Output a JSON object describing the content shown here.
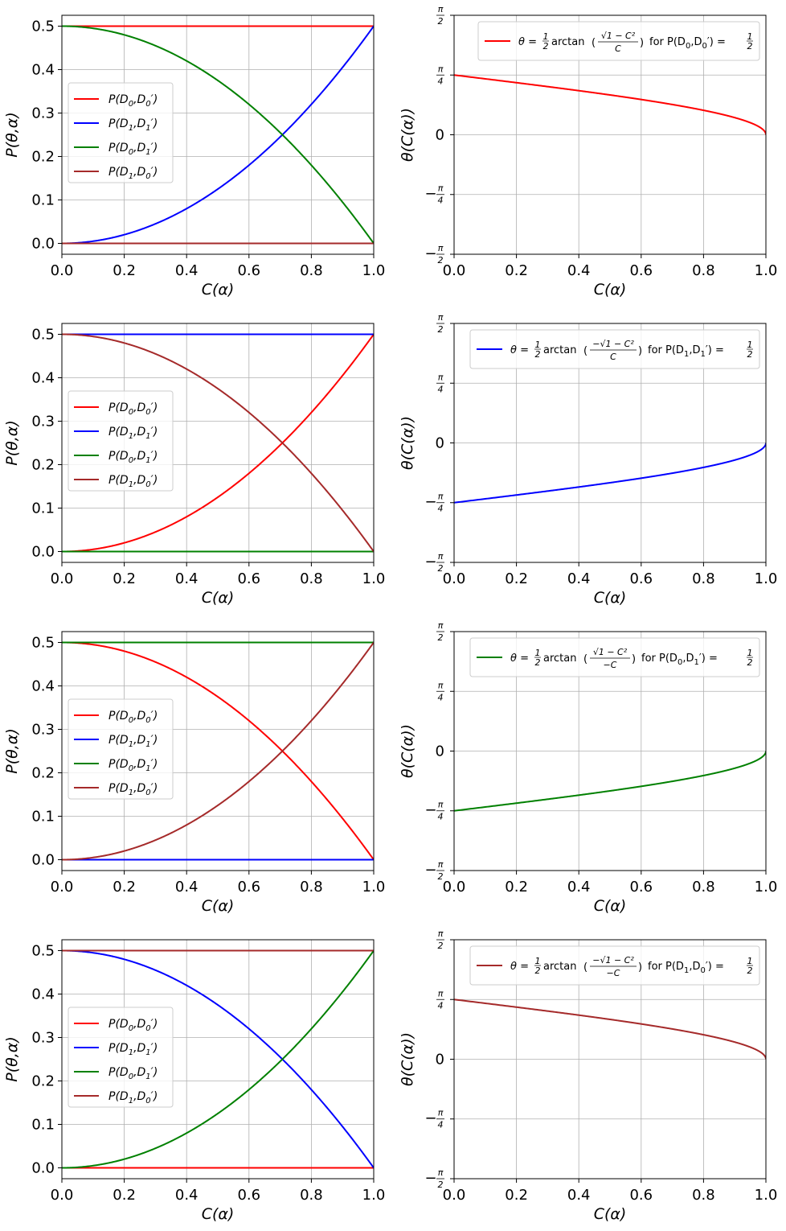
{
  "chart_data": [
    {
      "type": "line",
      "row": 0,
      "col": 0,
      "xlabel": "C(α)",
      "ylabel": "P(θ,α)",
      "xlim": [
        0,
        1
      ],
      "ylim": [
        -0.025,
        0.525
      ],
      "xticks": [
        "0.0",
        "0.2",
        "0.4",
        "0.6",
        "0.8",
        "1.0"
      ],
      "yticks": [
        "0.0",
        "0.1",
        "0.2",
        "0.3",
        "0.4",
        "0.5"
      ],
      "legend_position": "center-left",
      "series": [
        {
          "name": "P(D0,D0')",
          "label_main": "P(D",
          "sub1": "0",
          "mid": ",D",
          "sub2": "0",
          "tail": "′)",
          "color": "#ff0000",
          "func": "const_half"
        },
        {
          "name": "P(D1,D1')",
          "label_main": "P(D",
          "sub1": "1",
          "mid": ",D",
          "sub2": "1",
          "tail": "′)",
          "color": "#0000ff",
          "func": "half_c2"
        },
        {
          "name": "P(D0,D1')",
          "label_main": "P(D",
          "sub1": "0",
          "mid": ",D",
          "sub2": "1",
          "tail": "′)",
          "color": "#008000",
          "func": "half_1mc2"
        },
        {
          "name": "P(D1,D0')",
          "label_main": "P(D",
          "sub1": "1",
          "mid": ",D",
          "sub2": "0",
          "tail": "′)",
          "color": "#a52a2a",
          "func": "zero"
        }
      ]
    },
    {
      "type": "line",
      "row": 0,
      "col": 1,
      "xlabel": "C(α)",
      "ylabel": "θ(C(α))",
      "xlim": [
        0,
        1
      ],
      "ylim": [
        -1.5708,
        1.5708
      ],
      "xticks": [
        "0.0",
        "0.2",
        "0.4",
        "0.6",
        "0.8",
        "1.0"
      ],
      "yticks": [
        "−π/2",
        "−π/4",
        "0",
        "π/4",
        "π/2"
      ],
      "legend_position": "top-right",
      "series": [
        {
          "name": "theta",
          "color": "#ff0000",
          "func": "theta_pos",
          "legend": {
            "prefix": "θ = ",
            "half": "1/2",
            "fn": "arctan",
            "num": "√1 − C²",
            "den": "C",
            "for_text": "for P(D",
            "s1": "0",
            "mid": ",D",
            "s2": "0",
            "tail": "′) = ",
            "rhs": "1/2"
          }
        }
      ]
    },
    {
      "type": "line",
      "row": 1,
      "col": 0,
      "xlabel": "C(α)",
      "ylabel": "P(θ,α)",
      "xlim": [
        0,
        1
      ],
      "ylim": [
        -0.025,
        0.525
      ],
      "xticks": [
        "0.0",
        "0.2",
        "0.4",
        "0.6",
        "0.8",
        "1.0"
      ],
      "yticks": [
        "0.0",
        "0.1",
        "0.2",
        "0.3",
        "0.4",
        "0.5"
      ],
      "legend_position": "center-left",
      "series": [
        {
          "name": "P(D0,D0')",
          "label_main": "P(D",
          "sub1": "0",
          "mid": ",D",
          "sub2": "0",
          "tail": "′)",
          "color": "#ff0000",
          "func": "half_c2"
        },
        {
          "name": "P(D1,D1')",
          "label_main": "P(D",
          "sub1": "1",
          "mid": ",D",
          "sub2": "1",
          "tail": "′)",
          "color": "#0000ff",
          "func": "const_half"
        },
        {
          "name": "P(D0,D1')",
          "label_main": "P(D",
          "sub1": "0",
          "mid": ",D",
          "sub2": "1",
          "tail": "′)",
          "color": "#008000",
          "func": "zero"
        },
        {
          "name": "P(D1,D0')",
          "label_main": "P(D",
          "sub1": "1",
          "mid": ",D",
          "sub2": "0",
          "tail": "′)",
          "color": "#a52a2a",
          "func": "half_1mc2"
        }
      ]
    },
    {
      "type": "line",
      "row": 1,
      "col": 1,
      "xlabel": "C(α)",
      "ylabel": "θ(C(α))",
      "xlim": [
        0,
        1
      ],
      "ylim": [
        -1.5708,
        1.5708
      ],
      "xticks": [
        "0.0",
        "0.2",
        "0.4",
        "0.6",
        "0.8",
        "1.0"
      ],
      "yticks": [
        "−π/2",
        "−π/4",
        "0",
        "π/4",
        "π/2"
      ],
      "legend_position": "top-right",
      "series": [
        {
          "name": "theta",
          "color": "#0000ff",
          "func": "theta_neg",
          "legend": {
            "prefix": "θ = ",
            "half": "1/2",
            "fn": "arctan",
            "num": "−√1 − C²",
            "den": "C",
            "for_text": "for P(D",
            "s1": "1",
            "mid": ",D",
            "s2": "1",
            "tail": "′) = ",
            "rhs": "1/2"
          }
        }
      ]
    },
    {
      "type": "line",
      "row": 2,
      "col": 0,
      "xlabel": "C(α)",
      "ylabel": "P(θ,α)",
      "xlim": [
        0,
        1
      ],
      "ylim": [
        -0.025,
        0.525
      ],
      "xticks": [
        "0.0",
        "0.2",
        "0.4",
        "0.6",
        "0.8",
        "1.0"
      ],
      "yticks": [
        "0.0",
        "0.1",
        "0.2",
        "0.3",
        "0.4",
        "0.5"
      ],
      "legend_position": "center-left",
      "series": [
        {
          "name": "P(D0,D0')",
          "label_main": "P(D",
          "sub1": "0",
          "mid": ",D",
          "sub2": "0",
          "tail": "′)",
          "color": "#ff0000",
          "func": "half_1mc2"
        },
        {
          "name": "P(D1,D1')",
          "label_main": "P(D",
          "sub1": "1",
          "mid": ",D",
          "sub2": "1",
          "tail": "′)",
          "color": "#0000ff",
          "func": "zero"
        },
        {
          "name": "P(D0,D1')",
          "label_main": "P(D",
          "sub1": "0",
          "mid": ",D",
          "sub2": "1",
          "tail": "′)",
          "color": "#008000",
          "func": "const_half"
        },
        {
          "name": "P(D1,D0')",
          "label_main": "P(D",
          "sub1": "1",
          "mid": ",D",
          "sub2": "0",
          "tail": "′)",
          "color": "#a52a2a",
          "func": "half_c2"
        }
      ]
    },
    {
      "type": "line",
      "row": 2,
      "col": 1,
      "xlabel": "C(α)",
      "ylabel": "θ(C(α))",
      "xlim": [
        0,
        1
      ],
      "ylim": [
        -1.5708,
        1.5708
      ],
      "xticks": [
        "0.0",
        "0.2",
        "0.4",
        "0.6",
        "0.8",
        "1.0"
      ],
      "yticks": [
        "−π/2",
        "−π/4",
        "0",
        "π/4",
        "π/2"
      ],
      "legend_position": "top-right",
      "series": [
        {
          "name": "theta",
          "color": "#008000",
          "func": "theta_neg",
          "legend": {
            "prefix": "θ = ",
            "half": "1/2",
            "fn": "arctan",
            "num": "√1 − C²",
            "den": "−C",
            "for_text": "for P(D",
            "s1": "0",
            "mid": ",D",
            "s2": "1",
            "tail": "′) = ",
            "rhs": "1/2"
          }
        }
      ]
    },
    {
      "type": "line",
      "row": 3,
      "col": 0,
      "xlabel": "C(α)",
      "ylabel": "P(θ,α)",
      "xlim": [
        0,
        1
      ],
      "ylim": [
        -0.025,
        0.525
      ],
      "xticks": [
        "0.0",
        "0.2",
        "0.4",
        "0.6",
        "0.8",
        "1.0"
      ],
      "yticks": [
        "0.0",
        "0.1",
        "0.2",
        "0.3",
        "0.4",
        "0.5"
      ],
      "legend_position": "center-left",
      "series": [
        {
          "name": "P(D0,D0')",
          "label_main": "P(D",
          "sub1": "0",
          "mid": ",D",
          "sub2": "0",
          "tail": "′)",
          "color": "#ff0000",
          "func": "zero"
        },
        {
          "name": "P(D1,D1')",
          "label_main": "P(D",
          "sub1": "1",
          "mid": ",D",
          "sub2": "1",
          "tail": "′)",
          "color": "#0000ff",
          "func": "half_1mc2"
        },
        {
          "name": "P(D0,D1')",
          "label_main": "P(D",
          "sub1": "0",
          "mid": ",D",
          "sub2": "1",
          "tail": "′)",
          "color": "#008000",
          "func": "half_c2"
        },
        {
          "name": "P(D1,D0')",
          "label_main": "P(D",
          "sub1": "1",
          "mid": ",D",
          "sub2": "0",
          "tail": "′)",
          "color": "#a52a2a",
          "func": "const_half"
        }
      ]
    },
    {
      "type": "line",
      "row": 3,
      "col": 1,
      "xlabel": "C(α)",
      "ylabel": "θ(C(α))",
      "xlim": [
        0,
        1
      ],
      "ylim": [
        -1.5708,
        1.5708
      ],
      "xticks": [
        "0.0",
        "0.2",
        "0.4",
        "0.6",
        "0.8",
        "1.0"
      ],
      "yticks": [
        "−π/2",
        "−π/4",
        "0",
        "π/4",
        "π/2"
      ],
      "legend_position": "top-right",
      "series": [
        {
          "name": "theta",
          "color": "#a52a2a",
          "func": "theta_pos",
          "legend": {
            "prefix": "θ = ",
            "half": "1/2",
            "fn": "arctan",
            "num": "−√1 − C²",
            "den": "−C",
            "for_text": "for P(D",
            "s1": "1",
            "mid": ",D",
            "s2": "0",
            "tail": "′) = ",
            "rhs": "1/2"
          }
        }
      ]
    }
  ]
}
